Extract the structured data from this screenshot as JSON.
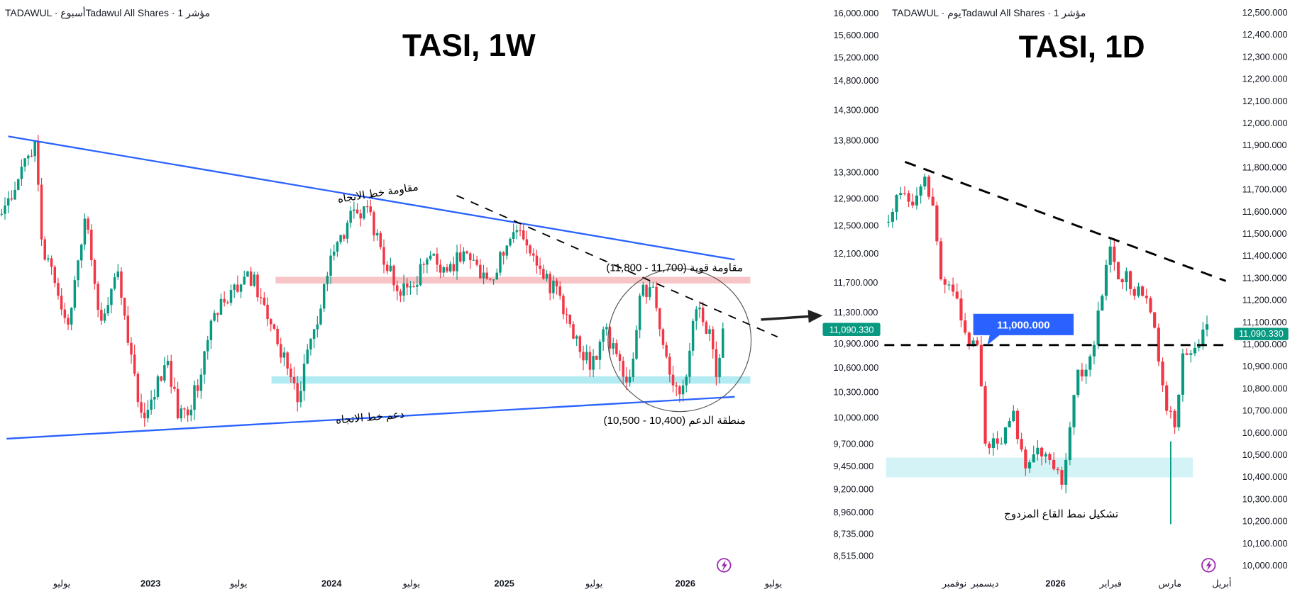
{
  "colors": {
    "up": "#089981",
    "down": "#f23645",
    "trend": "#2962ff",
    "resistance_zone": "#f7c5c8",
    "support_zone": "#b2ebf2",
    "badge": "#089981",
    "callout": "#2962ff",
    "lightning": "#9c27b0"
  },
  "left_chart": {
    "header": "TADAWUL · أسبوعTadawul All Shares · 1 مؤشر",
    "title": "TASI, 1W",
    "last_price": "11,090.330",
    "annotations": {
      "trend_resistance": "مقاومة خط الاتجاه",
      "trend_support": "دعم خط الاتجاه",
      "strong_resistance": "مقاومة قوية (11,700 - 11,800)",
      "support_zone": "منطقة الدعم (10,400 - 10,500)"
    },
    "icons": [
      "lightning-icon"
    ]
  },
  "right_chart": {
    "header": "TADAWUL · يومTadawul All Shares · 1 مؤشر",
    "title": "TASI, 1D",
    "last_price": "11,090.330",
    "annotations": {
      "level_callout": "11,000.000",
      "double_bottom": "تشكيل نمط القاع المزدوج"
    },
    "icons": [
      "lightning-icon"
    ]
  },
  "chart_data": [
    {
      "type": "candlestick",
      "title": "TASI, 1W",
      "scale": "log",
      "ylim": [
        8515,
        16000
      ],
      "y_ticks": [
        "16,000.000",
        "15,600.000",
        "15,200.000",
        "14,800.000",
        "14,300.000",
        "13,800.000",
        "13,300.000",
        "12,900.000",
        "12,500.000",
        "12,100.000",
        "11,700.000",
        "11,300.000",
        "10,900.000",
        "10,600.000",
        "10,300.000",
        "10,000.000",
        "9,700.000",
        "9,450.000",
        "9,200.000",
        "8,960.000",
        "8,735.000",
        "8,515.000"
      ],
      "x_ticks": [
        "يوليو",
        "2023",
        "يوليو",
        "2024",
        "يوليو",
        "2025",
        "يوليو",
        "2026",
        "يوليو"
      ],
      "weeks": 218,
      "close_keypoints": [
        [
          0,
          12670
        ],
        [
          10,
          13780
        ],
        [
          12,
          12300
        ],
        [
          17,
          11520
        ],
        [
          20,
          11140
        ],
        [
          25,
          12600
        ],
        [
          30,
          11190
        ],
        [
          35,
          11850
        ],
        [
          41,
          10180
        ],
        [
          43,
          9990
        ],
        [
          50,
          10680
        ],
        [
          53,
          9990
        ],
        [
          57,
          10090
        ],
        [
          64,
          11290
        ],
        [
          74,
          11850
        ],
        [
          79,
          11400
        ],
        [
          83,
          10890
        ],
        [
          87,
          10480
        ],
        [
          89,
          10180
        ],
        [
          94,
          11080
        ],
        [
          99,
          12070
        ],
        [
          104,
          12540
        ],
        [
          110,
          12780
        ],
        [
          114,
          12190
        ],
        [
          120,
          11520
        ],
        [
          124,
          11640
        ],
        [
          129,
          12070
        ],
        [
          134,
          11850
        ],
        [
          139,
          12130
        ],
        [
          146,
          11750
        ],
        [
          151,
          12070
        ],
        [
          156,
          12430
        ],
        [
          160,
          12070
        ],
        [
          163,
          11750
        ],
        [
          168,
          11520
        ],
        [
          173,
          10990
        ],
        [
          177,
          10570
        ],
        [
          181,
          11080
        ],
        [
          186,
          10680
        ],
        [
          189,
          10480
        ],
        [
          192,
          11520
        ],
        [
          196,
          11640
        ],
        [
          198,
          11080
        ],
        [
          202,
          10380
        ],
        [
          205,
          10380
        ],
        [
          209,
          11340
        ],
        [
          213,
          11080
        ],
        [
          215,
          10480
        ],
        [
          217,
          11090
        ]
      ],
      "zones": {
        "resistance": [
          11700,
          11800
        ],
        "support": [
          10400,
          10500
        ]
      }
    },
    {
      "type": "candlestick",
      "title": "TASI, 1D",
      "scale": "linear",
      "ylim": [
        10000,
        12500
      ],
      "y_ticks": [
        "12,500.000",
        "12,400.000",
        "12,300.000",
        "12,200.000",
        "12,100.000",
        "12,000.000",
        "11,900.000",
        "11,800.000",
        "11,700.000",
        "11,600.000",
        "11,500.000",
        "11,400.000",
        "11,300.000",
        "11,200.000",
        "11,100.000",
        "11,000.000",
        "10,900.000",
        "10,800.000",
        "10,700.000",
        "10,600.000",
        "10,500.000",
        "10,400.000",
        "10,300.000",
        "10,200.000",
        "10,100.000",
        "10,000.000"
      ],
      "x_ticks": [
        "نوفمبر",
        "ديسمبر",
        "2026",
        "فبراير",
        "مارس",
        "أبريل"
      ],
      "days": 80,
      "close_keypoints": [
        [
          0,
          11553
        ],
        [
          3,
          11683
        ],
        [
          6,
          11627
        ],
        [
          9,
          11757
        ],
        [
          11,
          11627
        ],
        [
          13,
          11293
        ],
        [
          16,
          11237
        ],
        [
          18,
          11107
        ],
        [
          20,
          10996
        ],
        [
          22,
          10996
        ],
        [
          23,
          10810
        ],
        [
          24,
          10550
        ],
        [
          27,
          10550
        ],
        [
          29,
          10624
        ],
        [
          31,
          10698
        ],
        [
          34,
          10438
        ],
        [
          37,
          10531
        ],
        [
          40,
          10476
        ],
        [
          43,
          10364
        ],
        [
          45,
          10624
        ],
        [
          47,
          10884
        ],
        [
          49,
          10884
        ],
        [
          51,
          10996
        ],
        [
          53,
          11218
        ],
        [
          55,
          11441
        ],
        [
          57,
          11293
        ],
        [
          59,
          11330
        ],
        [
          61,
          11218
        ],
        [
          63,
          11218
        ],
        [
          65,
          11144
        ],
        [
          67,
          10921
        ],
        [
          69,
          10698
        ],
        [
          71,
          10624
        ],
        [
          73,
          10958
        ],
        [
          75,
          10958
        ],
        [
          77,
          10996
        ],
        [
          79,
          11090
        ]
      ],
      "levels": {
        "neckline": 11000,
        "support_zone": [
          10400,
          10500
        ]
      }
    }
  ]
}
